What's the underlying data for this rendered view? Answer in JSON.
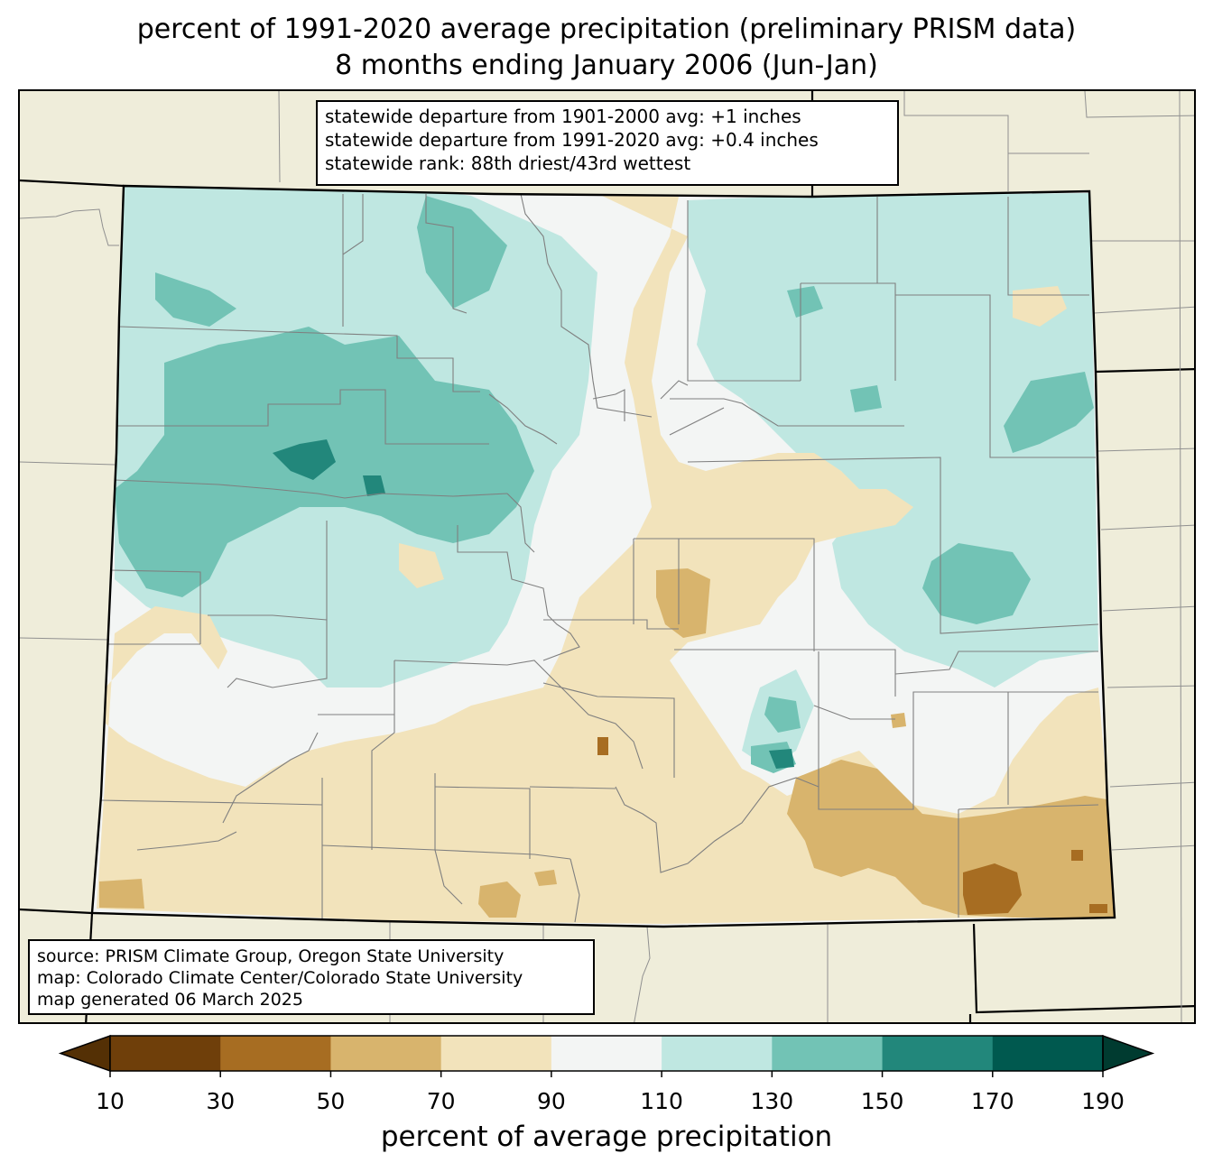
{
  "title": {
    "line1": "percent of 1991-2020 average precipitation (preliminary PRISM data)",
    "line2": "8 months ending January 2006 (Jun-Jan)"
  },
  "stats_box": {
    "line1": "statewide departure from 1901-2000 avg: +1 inches",
    "line2": "statewide departure from 1991-2020 avg: +0.4 inches",
    "line3": "statewide rank: 88th driest/43rd wettest"
  },
  "source_box": {
    "line1": "source: PRISM Climate Group, Oregon State University",
    "line2": "map: Colorado Climate Center/Colorado State University",
    "line3": "map generated 06 March 2025"
  },
  "colorbar": {
    "label": "percent of average precipitation",
    "ticks": [
      "10",
      "30",
      "50",
      "70",
      "90",
      "110",
      "130",
      "150",
      "170",
      "190"
    ],
    "bins": [
      {
        "range": "<10",
        "color": "#543005"
      },
      {
        "range": "10-30",
        "color": "#6f3f0a"
      },
      {
        "range": "30-50",
        "color": "#a76d22"
      },
      {
        "range": "50-70",
        "color": "#d8b46d"
      },
      {
        "range": "70-90",
        "color": "#f2e3bb"
      },
      {
        "range": "90-110",
        "color": "#f3f5f4"
      },
      {
        "range": "110-130",
        "color": "#bfe7e1"
      },
      {
        "range": "130-150",
        "color": "#72c3b5"
      },
      {
        "range": "150-170",
        "color": "#22877b"
      },
      {
        "range": "170-190",
        "color": "#00594f"
      },
      {
        "range": ">190",
        "color": "#003b30"
      }
    ]
  },
  "colors": {
    "land_outside": "#efedda",
    "border": "#000000",
    "county_lines": "#808080"
  }
}
